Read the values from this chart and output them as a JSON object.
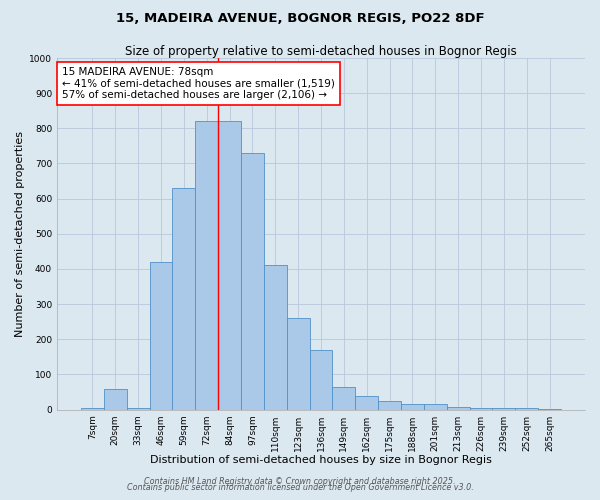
{
  "title_line1": "15, MADEIRA AVENUE, BOGNOR REGIS, PO22 8DF",
  "title_line2": "Size of property relative to semi-detached houses in Bognor Regis",
  "xlabel": "Distribution of semi-detached houses by size in Bognor Regis",
  "ylabel": "Number of semi-detached properties",
  "categories": [
    "7sqm",
    "20sqm",
    "33sqm",
    "46sqm",
    "59sqm",
    "72sqm",
    "84sqm",
    "97sqm",
    "110sqm",
    "123sqm",
    "136sqm",
    "149sqm",
    "162sqm",
    "175sqm",
    "188sqm",
    "201sqm",
    "213sqm",
    "226sqm",
    "239sqm",
    "252sqm",
    "265sqm"
  ],
  "values": [
    5,
    60,
    5,
    420,
    630,
    820,
    820,
    730,
    410,
    260,
    170,
    65,
    40,
    25,
    15,
    15,
    8,
    5,
    5,
    5,
    3
  ],
  "bar_color": "#aac8e8",
  "bar_edge_color": "#5090c8",
  "bar_linewidth": 0.6,
  "grid_color": "#b8c8dc",
  "background_color": "#dce8f0",
  "annotation_text": "15 MADEIRA AVENUE: 78sqm\n← 41% of semi-detached houses are smaller (1,519)\n57% of semi-detached houses are larger (2,106) →",
  "vline_color": "red",
  "ylim": [
    0,
    1000
  ],
  "yticks": [
    0,
    100,
    200,
    300,
    400,
    500,
    600,
    700,
    800,
    900,
    1000
  ],
  "footer_line1": "Contains HM Land Registry data © Crown copyright and database right 2025.",
  "footer_line2": "Contains public sector information licensed under the Open Government Licence v3.0.",
  "title_fontsize": 9.5,
  "subtitle_fontsize": 8.5,
  "axis_label_fontsize": 8,
  "tick_fontsize": 6.5,
  "annotation_fontsize": 7.5,
  "footer_fontsize": 5.8
}
